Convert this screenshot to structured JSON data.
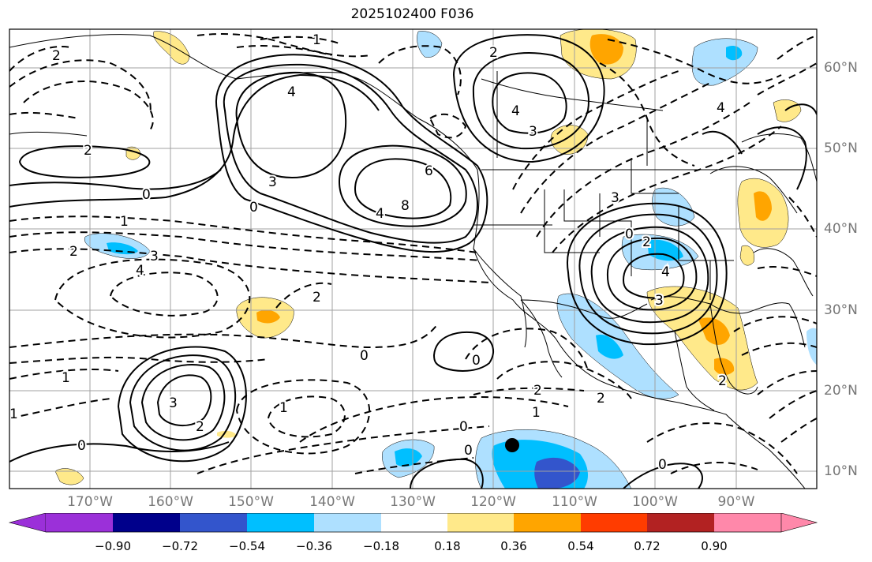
{
  "title": "2025102400 F036",
  "lat_labels": [
    "60°N",
    "50°N",
    "40°N",
    "30°N",
    "20°N",
    "10°N"
  ],
  "lon_labels": [
    "170°W",
    "160°W",
    "150°W",
    "140°W",
    "130°W",
    "120°W",
    "110°W",
    "100°W",
    "90°W"
  ],
  "colorbar": {
    "ticks": [
      "−0.90",
      "−0.72",
      "−0.54",
      "−0.36",
      "−0.18",
      "0.18",
      "0.36",
      "0.54",
      "0.72",
      "0.90"
    ],
    "colors": [
      "#9b30d9",
      "#00008b",
      "#3355cc",
      "#00bfff",
      "#aee0ff",
      "#ffffff",
      "#ffe98a",
      "#ffa500",
      "#ff3c00",
      "#b22222",
      "#ff88aa"
    ]
  },
  "contour_labels": {
    "c_2a": "2",
    "c_0a": "0",
    "c_4a": "4",
    "c_3a": "3",
    "c_6": "6",
    "c_8": "8",
    "c_4b": "4",
    "c_0b": "0",
    "c_1a": "1",
    "c_2b": "2",
    "c_3b": "3",
    "c_4c": "4",
    "c_2c": "2",
    "c_0c": "0",
    "c_1b": "1",
    "c_0d": "0",
    "c_3c": "3",
    "c_2d": "2",
    "c_1c": "1",
    "c_0e": "0",
    "c_0f": "0",
    "c_0g": "0",
    "c_1d": "1",
    "c_2e": "2",
    "c_2f": "2",
    "c_2g": "2",
    "c_3d": "3",
    "c_4d": "4",
    "c_3e": "3",
    "c_2h": "2",
    "c_0h": "0",
    "c_2i": "2",
    "c_4e": "4",
    "c_3f": "3",
    "c_4f": "4",
    "c_0i": "0",
    "c_1e": "1",
    "c_2j": "2",
    "c_1f": "1"
  },
  "marker": {
    "label": "black dot"
  }
}
